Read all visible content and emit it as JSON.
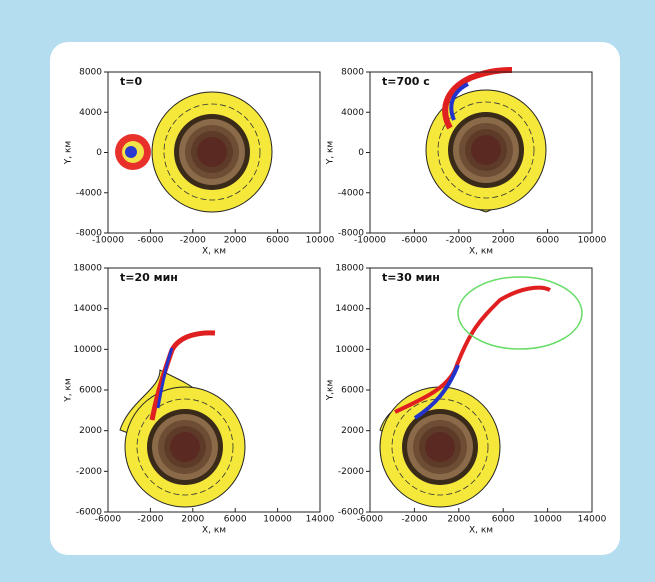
{
  "chart_data": [
    {
      "type": "contour",
      "title": "t=0",
      "xlabel": "X, км",
      "ylabel": "Y, км",
      "xlim": [
        -10000,
        10000
      ],
      "xticks": [
        -10000,
        -6000,
        -2000,
        2000,
        6000,
        10000
      ],
      "ylim": [
        -8000,
        8000
      ],
      "yticks": [
        -8000,
        -4000,
        0,
        4000,
        8000
      ]
    },
    {
      "type": "contour",
      "title": "t=700 с",
      "xlabel": "X, км",
      "ylabel": "Y, км",
      "xlim": [
        -10000,
        10000
      ],
      "xticks": [
        -10000,
        -6000,
        -2000,
        2000,
        6000,
        10000
      ],
      "ylim": [
        -8000,
        8000
      ],
      "yticks": [
        -8000,
        -4000,
        0,
        4000,
        8000
      ]
    },
    {
      "type": "contour",
      "title": "t=20 мин",
      "xlabel": "X, км",
      "ylabel": "Y, км",
      "xlim": [
        -6000,
        14000
      ],
      "xticks": [
        -6000,
        -2000,
        2000,
        6000,
        10000,
        14000
      ],
      "ylim": [
        -6000,
        18000
      ],
      "yticks": [
        -6000,
        -2000,
        2000,
        6000,
        10000,
        14000,
        18000
      ]
    },
    {
      "type": "contour",
      "title": "t=30 мин",
      "xlabel": "X, км",
      "ylabel": "Y,км",
      "xlim": [
        -6000,
        14000
      ],
      "xticks": [
        -6000,
        -2000,
        2000,
        6000,
        10000,
        14000
      ],
      "ylim": [
        -6000,
        18000
      ],
      "yticks": [
        -6000,
        -2000,
        2000,
        6000,
        10000,
        14000,
        18000
      ]
    }
  ]
}
